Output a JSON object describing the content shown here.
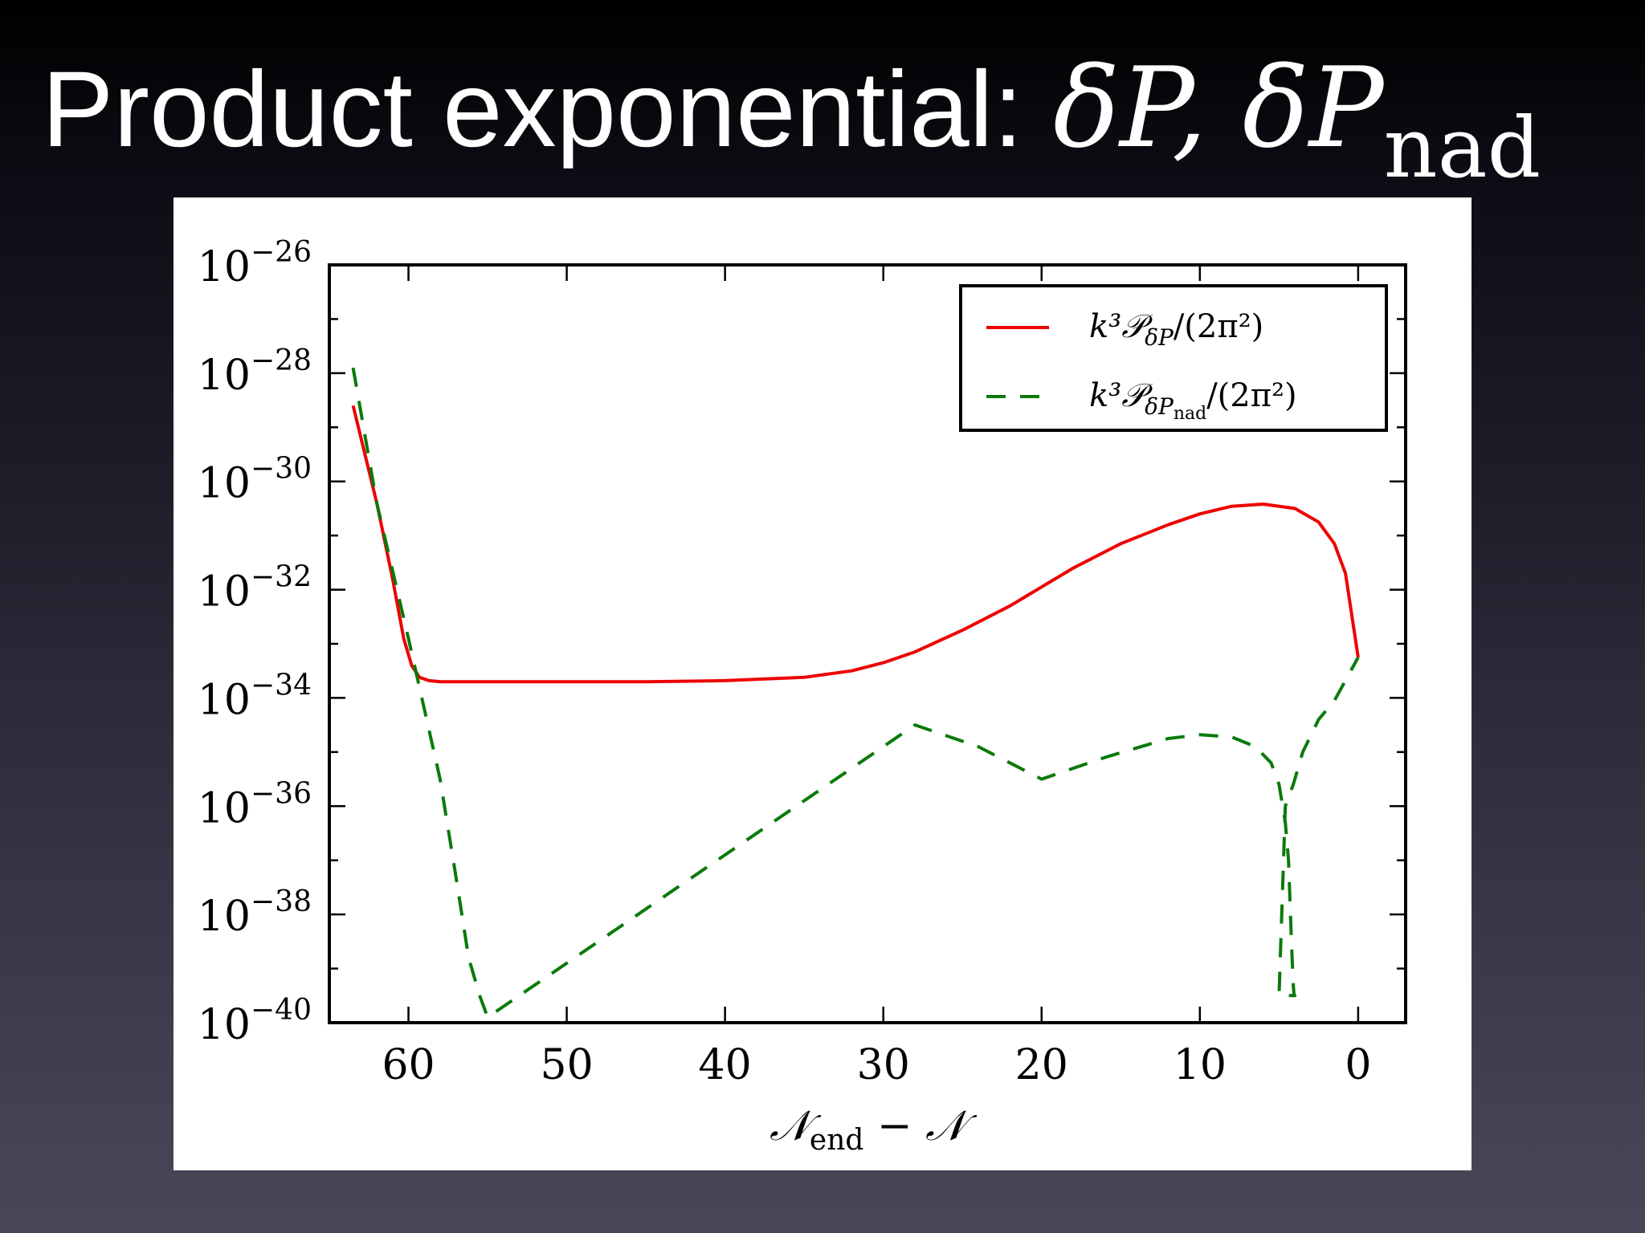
{
  "slide": {
    "title_text": "Product exponential: ",
    "title_math_1": "δP, δP",
    "title_math_sub": "nad"
  },
  "chart_data": {
    "type": "line",
    "xlabel": "𝒩end − 𝒩",
    "xlabel_main": "𝒩",
    "xlabel_sub": "end",
    "xlabel_rest": " − 𝒩",
    "ylabel": "",
    "x_reversed": true,
    "xlim": [
      65,
      -3
    ],
    "ylim_log10": [
      -40,
      -26
    ],
    "yscale": "log",
    "x_ticks": [
      60,
      50,
      40,
      30,
      20,
      10,
      0
    ],
    "y_ticks": [
      {
        "base": "10",
        "exp": "−26",
        "value": -26
      },
      {
        "base": "10",
        "exp": "−28",
        "value": -28
      },
      {
        "base": "10",
        "exp": "−30",
        "value": -30
      },
      {
        "base": "10",
        "exp": "−32",
        "value": -32
      },
      {
        "base": "10",
        "exp": "−34",
        "value": -34
      },
      {
        "base": "10",
        "exp": "−36",
        "value": -36
      },
      {
        "base": "10",
        "exp": "−38",
        "value": -38
      },
      {
        "base": "10",
        "exp": "−40",
        "value": -40
      }
    ],
    "legend_position": "top-right",
    "series": [
      {
        "name": "k³𝒫δP/(2π²)",
        "legend_main": "k³𝒫",
        "legend_sub": "δP",
        "legend_tail": "/(2π²)",
        "color": "#ee0000",
        "style": "solid",
        "x": [
          63.5,
          62,
          61,
          60.3,
          59.8,
          59.3,
          58.7,
          58,
          55,
          50,
          45,
          40,
          35,
          32,
          30,
          28,
          25,
          22,
          20,
          18,
          15,
          12,
          10,
          8,
          6,
          4,
          2.5,
          1.5,
          0.8,
          0
        ],
        "log10_y": [
          -28.6,
          -30.4,
          -31.8,
          -32.9,
          -33.4,
          -33.62,
          -33.68,
          -33.7,
          -33.7,
          -33.7,
          -33.7,
          -33.68,
          -33.62,
          -33.5,
          -33.35,
          -33.15,
          -32.75,
          -32.3,
          -31.95,
          -31.6,
          -31.15,
          -30.8,
          -30.6,
          -30.46,
          -30.42,
          -30.5,
          -30.75,
          -31.15,
          -31.7,
          -33.25
        ]
      },
      {
        "name": "k³𝒫δPnad/(2π²)",
        "legend_main": "k³𝒫",
        "legend_sub": "δP",
        "legend_subsub": "nad",
        "legend_tail": "/(2π²)",
        "color": "#0a7a0a",
        "style": "dashed",
        "x": [
          63.5,
          62,
          60,
          58,
          57,
          56.2,
          55.5,
          55,
          52,
          48,
          44,
          40,
          36,
          32,
          28,
          24,
          20,
          16,
          12,
          10,
          8,
          6.5,
          5.5,
          5,
          4.6,
          4.4,
          4.3,
          4.2,
          4.1,
          4.05,
          4.0,
          4.05,
          4.2,
          4.5,
          5.0,
          4.6,
          4.1,
          3.5,
          2.5,
          1.5,
          0
        ],
        "log10_y": [
          -27.9,
          -30.4,
          -32.9,
          -35.5,
          -37.3,
          -38.8,
          -39.5,
          -39.9,
          -39.3,
          -38.5,
          -37.7,
          -36.9,
          -36.1,
          -35.3,
          -34.5,
          -34.9,
          -35.5,
          -35.1,
          -34.75,
          -34.68,
          -34.72,
          -34.9,
          -35.2,
          -35.6,
          -36.3,
          -37.0,
          -37.8,
          -38.6,
          -39.3,
          -39.5,
          -39.5,
          -39.5,
          -39.5,
          -39.5,
          -39.5,
          -36.0,
          -35.6,
          -35.0,
          -34.4,
          -34.05,
          -33.25
        ]
      }
    ]
  }
}
